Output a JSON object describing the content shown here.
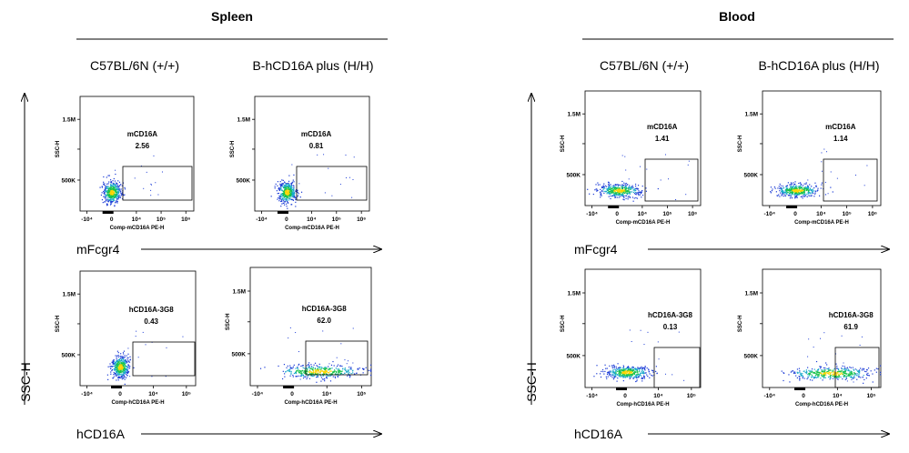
{
  "figure": {
    "left_title": "Spleen",
    "right_title": "Blood",
    "left_col1": "C57BL/6N (+/+)",
    "left_col2": "B-hCD16A plus  (H/H)",
    "right_col1": "C57BL/6N (+/+)",
    "right_col2": "B-hCD16A plus  (H/H)",
    "y_arrow_label": "SSC-H",
    "row1_label": "mFcgr4",
    "row2_label": "hCD16A"
  },
  "colors": {
    "dot_core": "#ffd400",
    "dot_mid": "#17c24a",
    "dot_edge": "#1b3bd6",
    "frame": "#000000"
  },
  "chart_data": [
    {
      "type": "scatter",
      "tissue": "Spleen",
      "strain": "C57BL/6N (+/+)",
      "gate_label": "mCD16A",
      "gate_value": "2.56",
      "ylabel": "SSC-H",
      "xlabel": "Comp-mCD16A PE-H",
      "yticks": [
        "500K",
        "1.5M"
      ],
      "xticks": [
        "-10⁴",
        "0",
        "10⁴",
        "10⁵",
        "10⁶"
      ],
      "distribution": "compact"
    },
    {
      "type": "scatter",
      "tissue": "Spleen",
      "strain": "B-hCD16A plus  (H/H)",
      "gate_label": "mCD16A",
      "gate_value": "0.81",
      "ylabel": "SSC-H",
      "xlabel": "Comp-mCD16A PE-H",
      "yticks": [
        "500K",
        "1.5M"
      ],
      "xticks": [
        "-10⁴",
        "0",
        "10⁴",
        "10⁵",
        "10⁶"
      ],
      "distribution": "compact"
    },
    {
      "type": "scatter",
      "tissue": "Spleen",
      "strain": "C57BL/6N (+/+)",
      "gate_label": "hCD16A-3G8",
      "gate_value": "0.43",
      "ylabel": "SSC-H",
      "xlabel": "Comp-hCD16A PE-H",
      "yticks": [
        "500K",
        "1.5M"
      ],
      "xticks": [
        "-10⁴",
        "0",
        "10⁴",
        "10⁵"
      ],
      "distribution": "compact"
    },
    {
      "type": "scatter",
      "tissue": "Spleen",
      "strain": "B-hCD16A plus  (H/H)",
      "gate_label": "hCD16A-3G8",
      "gate_value": "62.0",
      "ylabel": "SSC-H",
      "xlabel": "Comp-hCD16A PE-H",
      "yticks": [
        "500K",
        "1.5M"
      ],
      "xticks": [
        "-10⁴",
        "0",
        "10⁴",
        "10⁵"
      ],
      "distribution": "spread"
    },
    {
      "type": "scatter",
      "tissue": "Blood",
      "strain": "C57BL/6N (+/+)",
      "gate_label": "mCD16A",
      "gate_value": "1.41",
      "ylabel": "SSC-H",
      "xlabel": "Comp-mCD16A PE-H",
      "yticks": [
        "500K",
        "1.5M"
      ],
      "xticks": [
        "-10⁴",
        "0",
        "10⁴",
        "10⁵",
        "10⁶"
      ],
      "distribution": "horizontal"
    },
    {
      "type": "scatter",
      "tissue": "Blood",
      "strain": "B-hCD16A plus  (H/H)",
      "gate_label": "mCD16A",
      "gate_value": "1.14",
      "ylabel": "SSC-H",
      "xlabel": "Comp-mCD16A PE-H",
      "yticks": [
        "500K",
        "1.5M"
      ],
      "xticks": [
        "-10⁴",
        "0",
        "10⁴",
        "10⁵",
        "10⁶"
      ],
      "distribution": "horizontal"
    },
    {
      "type": "scatter",
      "tissue": "Blood",
      "strain": "C57BL/6N (+/+)",
      "gate_label": "hCD16A-3G8",
      "gate_value": "0.13",
      "ylabel": "SSC-H",
      "xlabel": "Comp-hCD16A PE-H",
      "yticks": [
        "500K",
        "1.5M"
      ],
      "xticks": [
        "-10⁴",
        "0",
        "10⁴",
        "10⁵"
      ],
      "distribution": "horizontal"
    },
    {
      "type": "scatter",
      "tissue": "Blood",
      "strain": "B-hCD16A plus  (H/H)",
      "gate_label": "hCD16A-3G8",
      "gate_value": "61.9",
      "ylabel": "SSC-H",
      "xlabel": "Comp-hCD16A PE-H",
      "yticks": [
        "500K",
        "1.5M"
      ],
      "xticks": [
        "-10⁴",
        "0",
        "10⁴",
        "10⁵"
      ],
      "distribution": "spread"
    }
  ]
}
